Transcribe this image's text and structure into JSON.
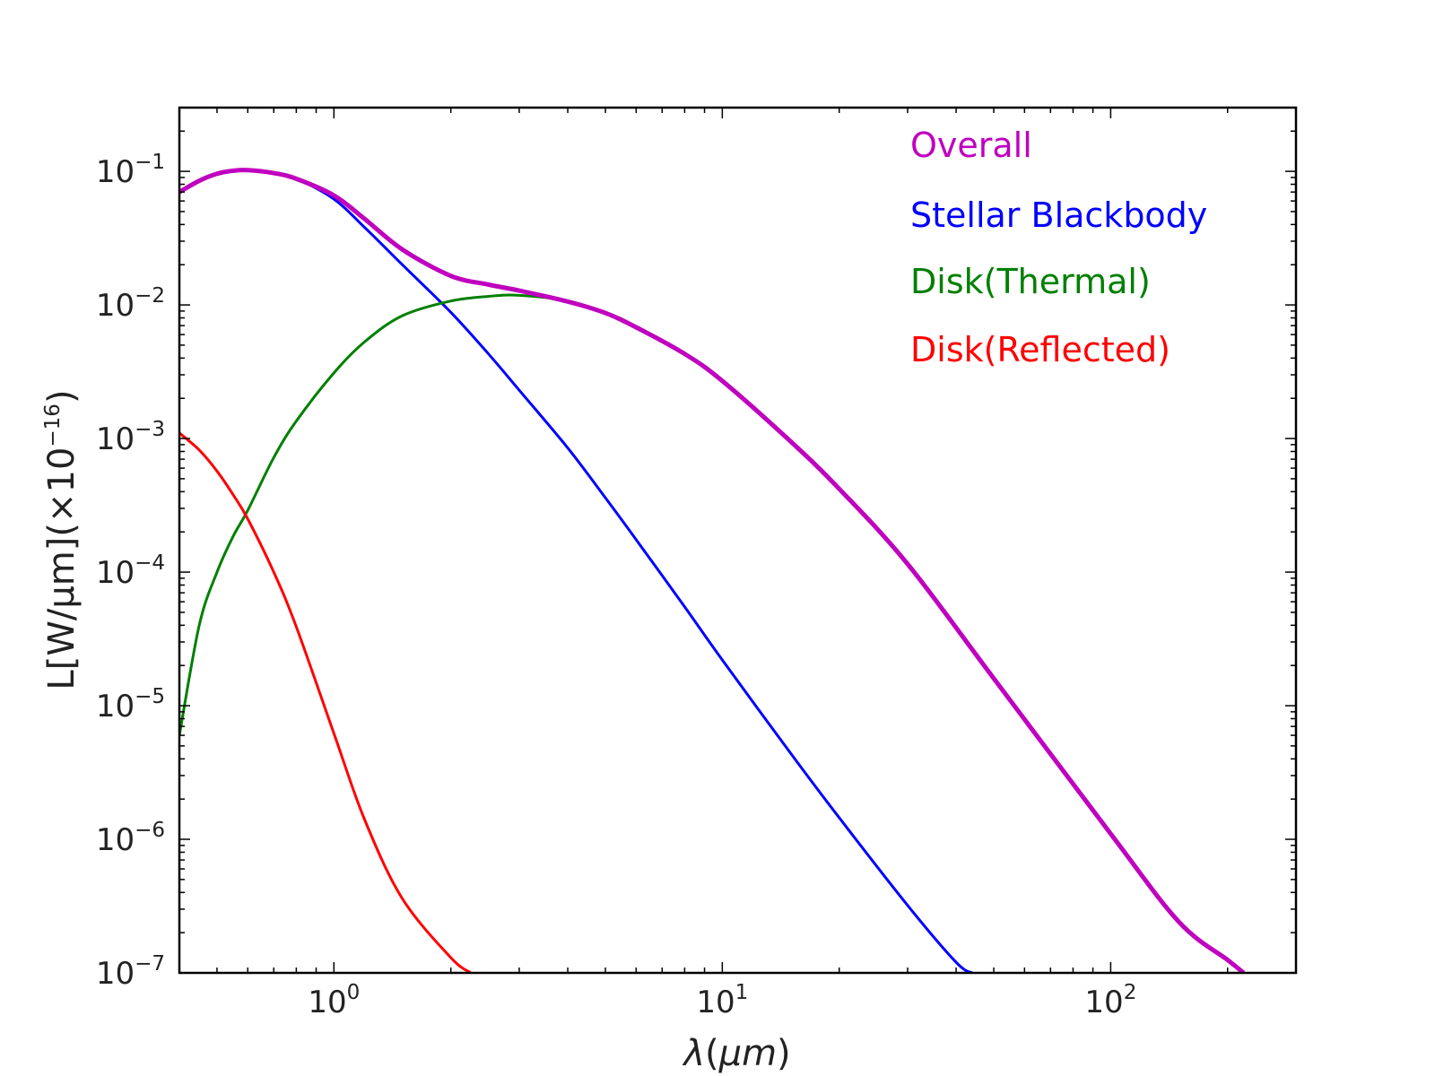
{
  "chart_data": {
    "type": "line",
    "xscale": "log",
    "yscale": "log",
    "xlim": [
      0.4,
      300
    ],
    "ylim": [
      1e-07,
      0.3
    ],
    "xlabel": "λ(μm)",
    "ylabel": "L[W/μm](×10⁻¹⁶)",
    "ylabel_parts": {
      "main": "L[W/μm](×10",
      "sup": "−16",
      "close": ")"
    },
    "xlabel_parts": {
      "lambda": "λ",
      "open": "(",
      "mu": "μm",
      "close": ")"
    },
    "xticks": [
      {
        "value": 1,
        "base": "10",
        "exp": "0"
      },
      {
        "value": 10,
        "base": "10",
        "exp": "1"
      },
      {
        "value": 100,
        "base": "10",
        "exp": "2"
      }
    ],
    "yticks": [
      {
        "value": 0.1,
        "base": "10",
        "exp": "−1"
      },
      {
        "value": 0.01,
        "base": "10",
        "exp": "−2"
      },
      {
        "value": 0.001,
        "base": "10",
        "exp": "−3"
      },
      {
        "value": 0.0001,
        "base": "10",
        "exp": "−4"
      },
      {
        "value": 1e-05,
        "base": "10",
        "exp": "−5"
      },
      {
        "value": 1e-06,
        "base": "10",
        "exp": "−6"
      },
      {
        "value": 1e-07,
        "base": "10",
        "exp": "−7"
      }
    ],
    "legend": {
      "position": "top-right",
      "frame": false
    },
    "series": [
      {
        "name": "Overall",
        "color": "#bf00bf",
        "width": 5,
        "x": [
          0.4,
          0.45,
          0.5,
          0.55,
          0.6,
          0.7,
          0.8,
          1.0,
          1.2,
          1.5,
          2.0,
          2.5,
          3.0,
          4.0,
          5.0,
          6.0,
          8.0,
          10,
          15,
          20,
          30,
          50,
          100,
          150,
          200,
          220
        ],
        "y": [
          0.07,
          0.085,
          0.096,
          0.101,
          0.102,
          0.097,
          0.088,
          0.066,
          0.044,
          0.026,
          0.0165,
          0.0142,
          0.0128,
          0.0106,
          0.0087,
          0.0068,
          0.0043,
          0.0027,
          0.00095,
          0.00042,
          0.000115,
          1.6e-05,
          1.1e-06,
          2.4e-07,
          1.25e-07,
          1e-07
        ]
      },
      {
        "name": "Stellar Blackbody",
        "color": "#0000ff",
        "width": 3,
        "x": [
          0.4,
          0.45,
          0.5,
          0.55,
          0.6,
          0.7,
          0.8,
          1.0,
          1.2,
          1.5,
          2.0,
          2.5,
          3.0,
          4.0,
          5.0,
          6.0,
          8.0,
          10,
          15,
          20,
          30,
          40,
          44
        ],
        "y": [
          0.07,
          0.085,
          0.096,
          0.101,
          0.102,
          0.097,
          0.088,
          0.062,
          0.038,
          0.02,
          0.0088,
          0.0043,
          0.0023,
          0.00085,
          0.00036,
          0.000175,
          5.5e-05,
          2.2e-05,
          4.4e-06,
          1.45e-06,
          3.2e-07,
          1.2e-07,
          1e-07
        ]
      },
      {
        "name": "Disk(Thermal)",
        "color": "#008000",
        "width": 3,
        "x": [
          0.4,
          0.45,
          0.5,
          0.55,
          0.6,
          0.7,
          0.8,
          1.0,
          1.2,
          1.5,
          2.0,
          2.5,
          3.0,
          4.0,
          5.0,
          6.0,
          8.0,
          10,
          15,
          20,
          30,
          50,
          100,
          150,
          200,
          220
        ],
        "y": [
          6e-06,
          4e-05,
          0.0001,
          0.000185,
          0.00029,
          0.00072,
          0.00135,
          0.0031,
          0.0053,
          0.0083,
          0.0107,
          0.0116,
          0.0118,
          0.0107,
          0.0087,
          0.0068,
          0.0043,
          0.0027,
          0.00095,
          0.00042,
          0.000115,
          1.6e-05,
          1.1e-06,
          2.4e-07,
          1.25e-07,
          1e-07
        ]
      },
      {
        "name": "Disk(Reflected)",
        "color": "#ff0000",
        "width": 3,
        "x": [
          0.4,
          0.45,
          0.5,
          0.55,
          0.6,
          0.7,
          0.8,
          1.0,
          1.2,
          1.5,
          2.0,
          2.25
        ],
        "y": [
          0.0011,
          0.00082,
          0.00057,
          0.00038,
          0.00025,
          0.0001,
          3.9e-05,
          6.2e-06,
          1.4e-06,
          3.6e-07,
          1.3e-07,
          1e-07
        ]
      }
    ]
  }
}
